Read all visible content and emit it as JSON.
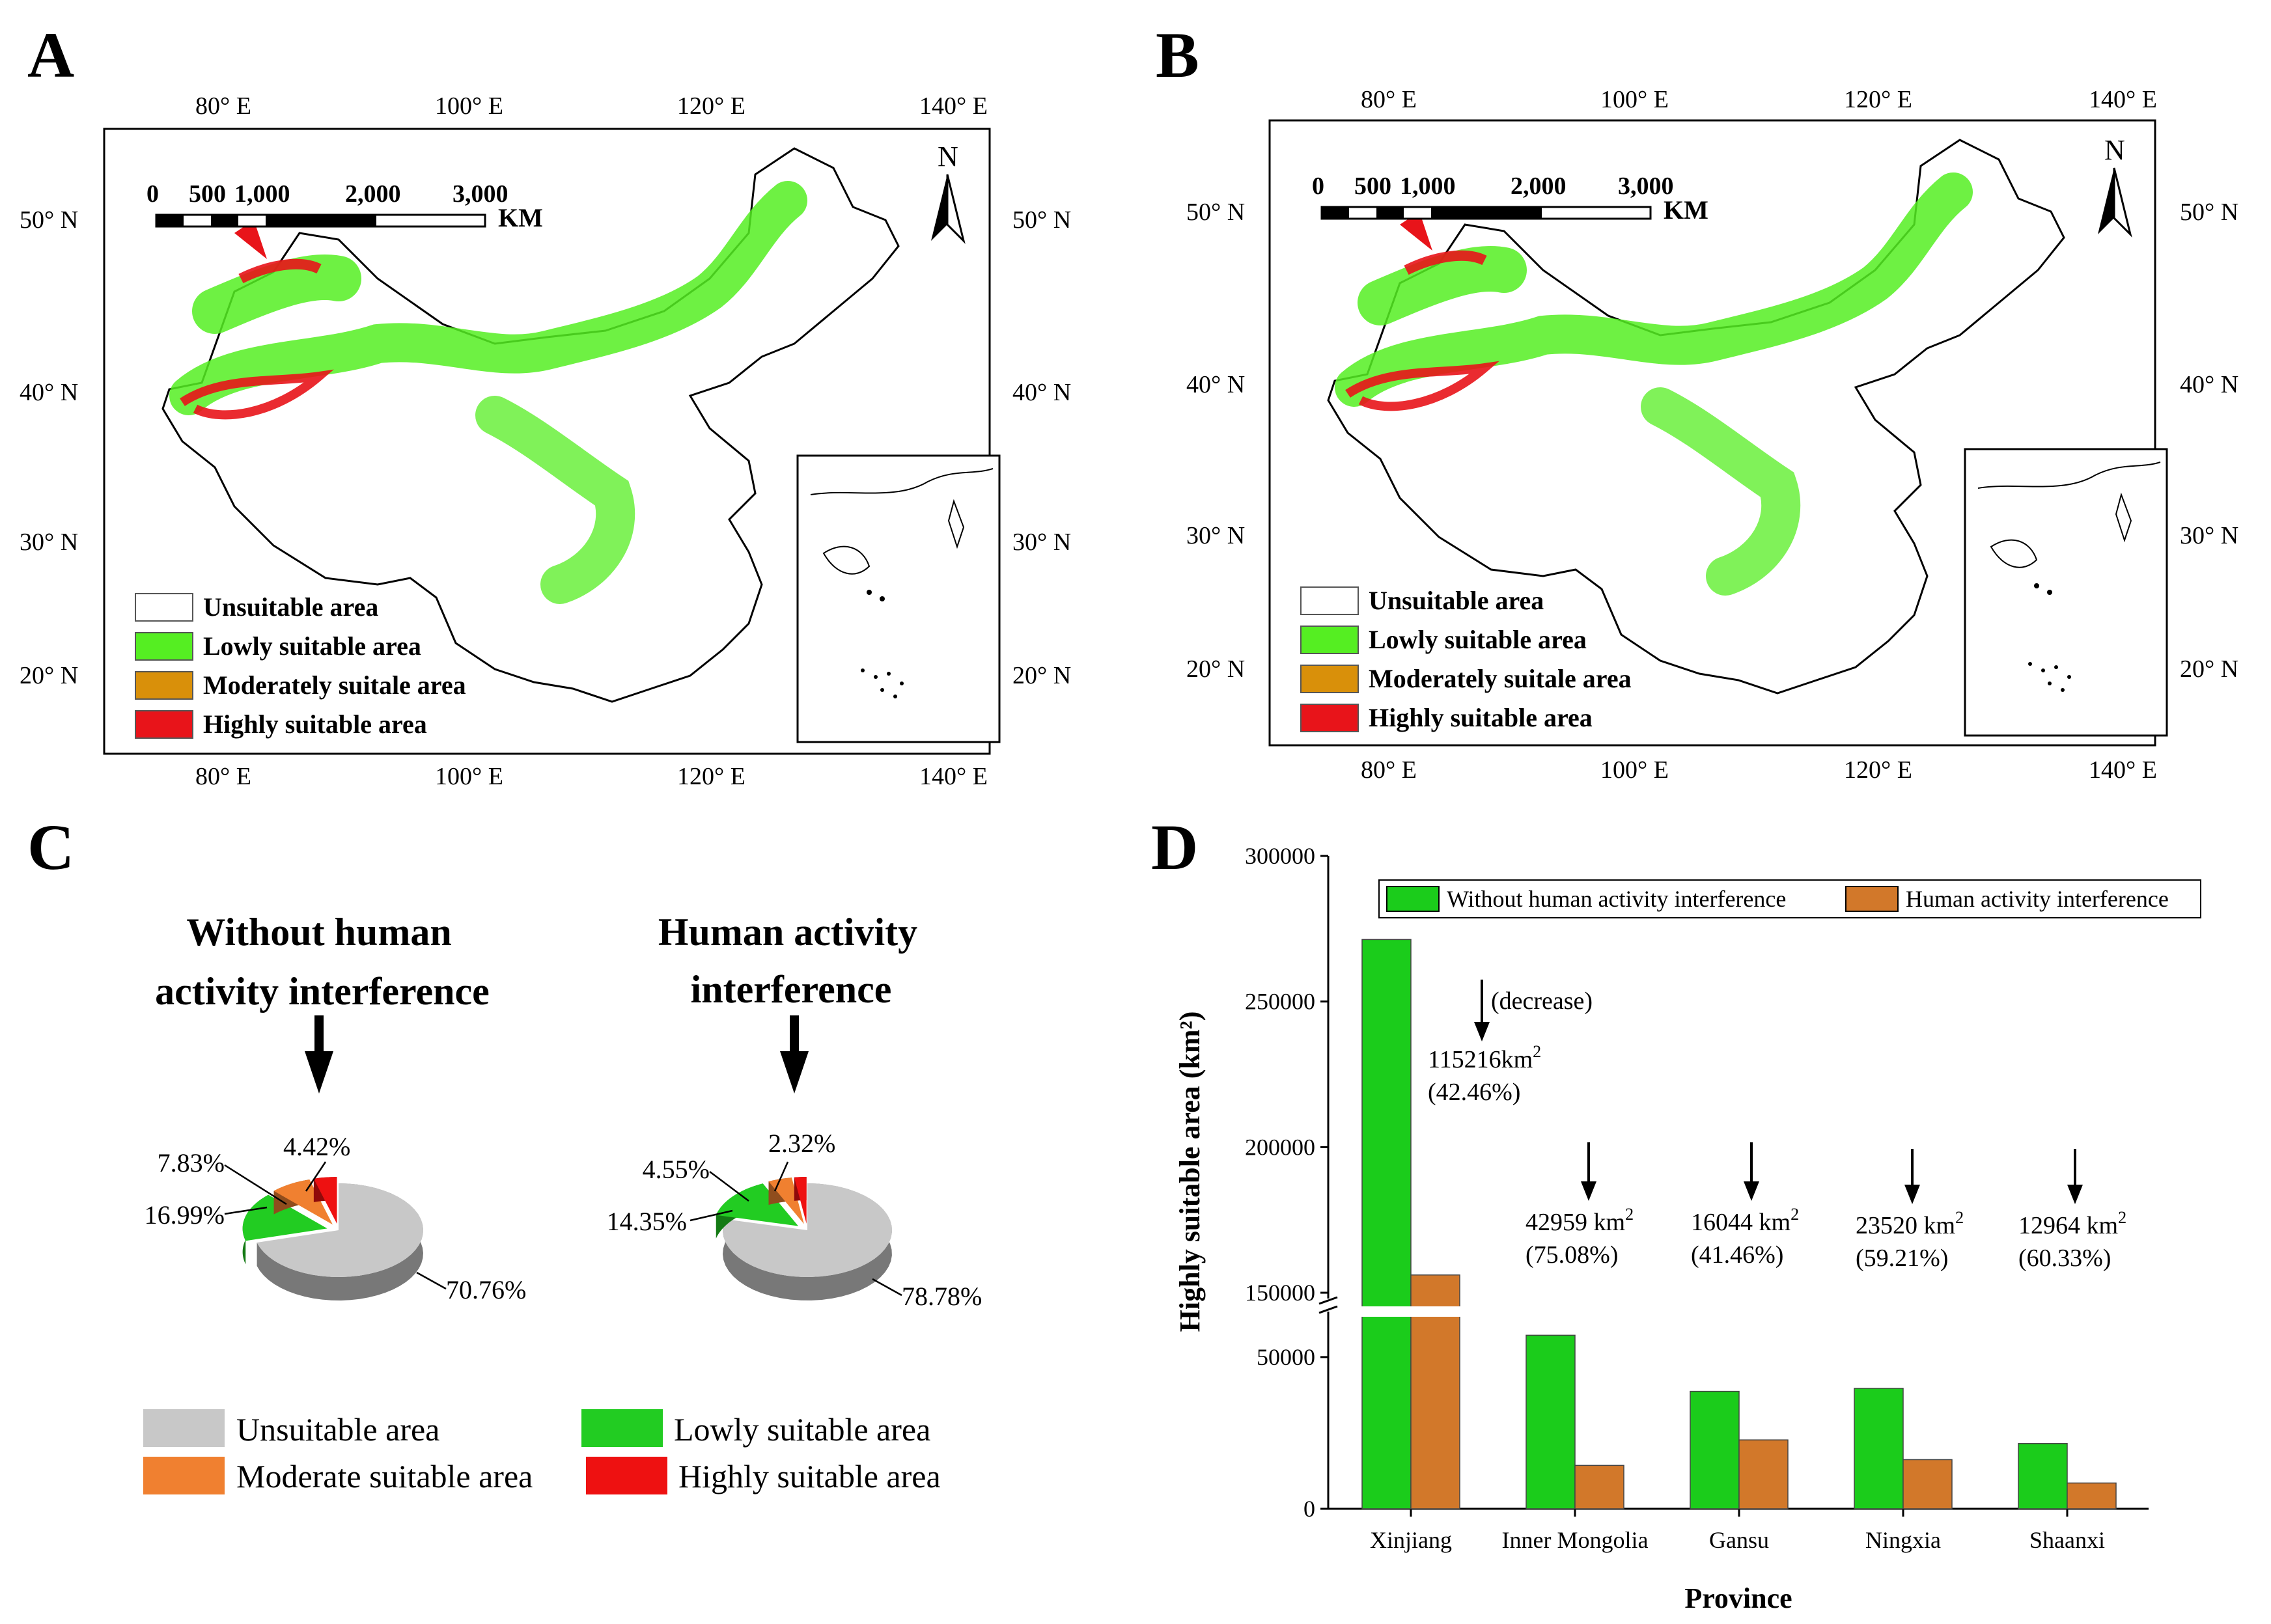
{
  "panels": {
    "a": "A",
    "b": "B",
    "c": "C",
    "d": "D"
  },
  "map": {
    "lon_labels": [
      "80° E",
      "100° E",
      "120° E",
      "140° E"
    ],
    "lat_labels": [
      "50° N",
      "40° N",
      "30° N",
      "20° N"
    ],
    "north": "N",
    "scale_ticks": [
      "0",
      "500",
      "1,000",
      "2,000",
      "3,000"
    ],
    "scale_unit": "KM",
    "legend": [
      {
        "label": "Unsuitable area",
        "color": "#ffffff"
      },
      {
        "label": "Lowly suitable area",
        "color": "#55ee22"
      },
      {
        "label": "Moderately suitale area",
        "color": "#d9900a"
      },
      {
        "label": "Highly suitable area",
        "color": "#e8141a"
      }
    ]
  },
  "chart_data": [
    {
      "type": "pie",
      "title": "Without human activity interference",
      "categories": [
        "Unsuitable area",
        "Lowly suitable area",
        "Moderate suitable area",
        "Highly suitable area"
      ],
      "values": [
        70.76,
        16.99,
        7.83,
        4.42
      ],
      "labels": [
        "70.76%",
        "16.99%",
        "7.83%",
        "4.42%"
      ],
      "colors": [
        "#c8c8c8",
        "#22cc22",
        "#f08030",
        "#ee1111"
      ]
    },
    {
      "type": "pie",
      "title": "Human activity interference",
      "categories": [
        "Unsuitable area",
        "Lowly suitable area",
        "Moderate suitable area",
        "Highly suitable area"
      ],
      "values": [
        78.78,
        14.35,
        4.55,
        2.32
      ],
      "labels": [
        "78.78%",
        "14.35%",
        "4.55%",
        "2.32%"
      ],
      "colors": [
        "#c8c8c8",
        "#22cc22",
        "#f08030",
        "#ee1111"
      ]
    },
    {
      "type": "bar",
      "categories": [
        "Xinjiang",
        "Inner Mongolia",
        "Gansu",
        "Ningxia",
        "Shaanxi"
      ],
      "series": [
        {
          "name": "Without human activity interference",
          "values": [
            271300,
            57200,
            38700,
            39700,
            21500
          ],
          "color": "#1bcc1b"
        },
        {
          "name": "Human activity interference",
          "values": [
            156100,
            14300,
            22700,
            16200,
            8500
          ],
          "color": "#d2782a"
        }
      ],
      "xlabel": "Province",
      "ylabel": "Highly suitable area (km²)",
      "axis_break": [
        65000,
        148000
      ],
      "ylim": [
        0,
        300000
      ],
      "yticks_lower": [
        "0",
        "50000"
      ],
      "yticks_upper": [
        "150000",
        "200000",
        "250000",
        "300000"
      ],
      "annotations": [
        {
          "amount": "115216km",
          "sup": "2",
          "percent": "(42.46%)",
          "note": "(decrease)"
        },
        {
          "amount": "42959 km",
          "sup": "2",
          "percent": "(75.08%)"
        },
        {
          "amount": "16044 km",
          "sup": "2",
          "percent": "(41.46%)"
        },
        {
          "amount": "23520 km",
          "sup": "2",
          "percent": "(59.21%)"
        },
        {
          "amount": "12964 km",
          "sup": "2",
          "percent": "(60.33%)"
        }
      ]
    }
  ]
}
